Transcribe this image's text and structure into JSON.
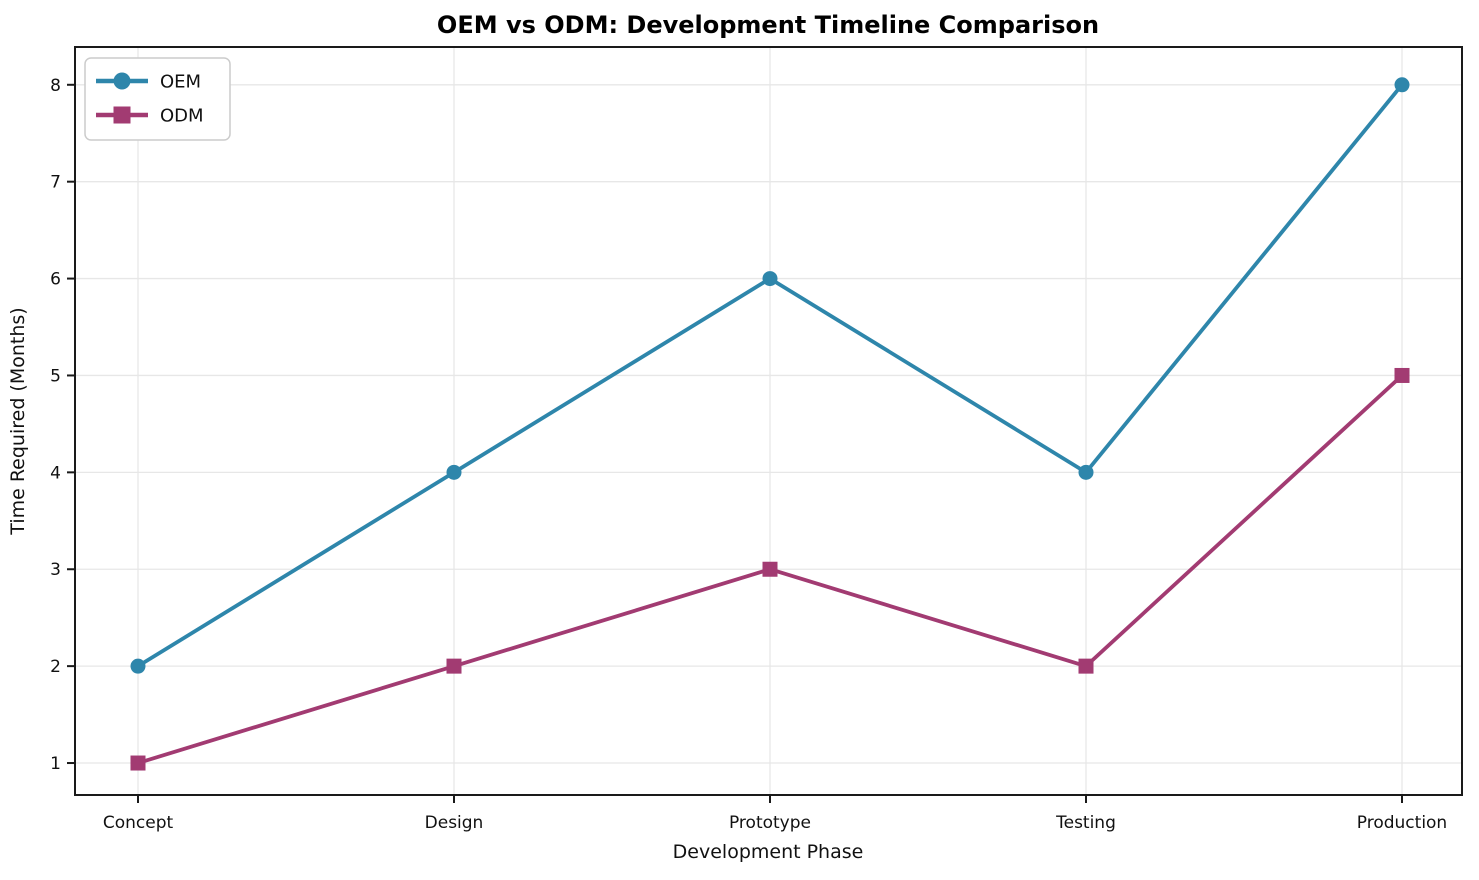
{
  "chart_data": {
    "type": "line",
    "title": "OEM vs ODM: Development Timeline Comparison",
    "xlabel": "Development Phase",
    "ylabel": "Time Required (Months)",
    "categories": [
      "Concept",
      "Design",
      "Prototype",
      "Testing",
      "Production"
    ],
    "series": [
      {
        "name": "OEM",
        "values": [
          2,
          4,
          6,
          4,
          8
        ],
        "color": "#2E86AB",
        "marker": "circle"
      },
      {
        "name": "ODM",
        "values": [
          1,
          2,
          3,
          2,
          5
        ],
        "color": "#A23B72",
        "marker": "square"
      }
    ],
    "yticks": [
      1,
      2,
      3,
      4,
      5,
      6,
      7,
      8
    ],
    "ylim": [
      0.67,
      8.39
    ],
    "grid": true,
    "grid_color": "#e7e7e7",
    "axis_color": "#1a1a1a",
    "text_color": "#111111",
    "legend_position": "upper left"
  }
}
